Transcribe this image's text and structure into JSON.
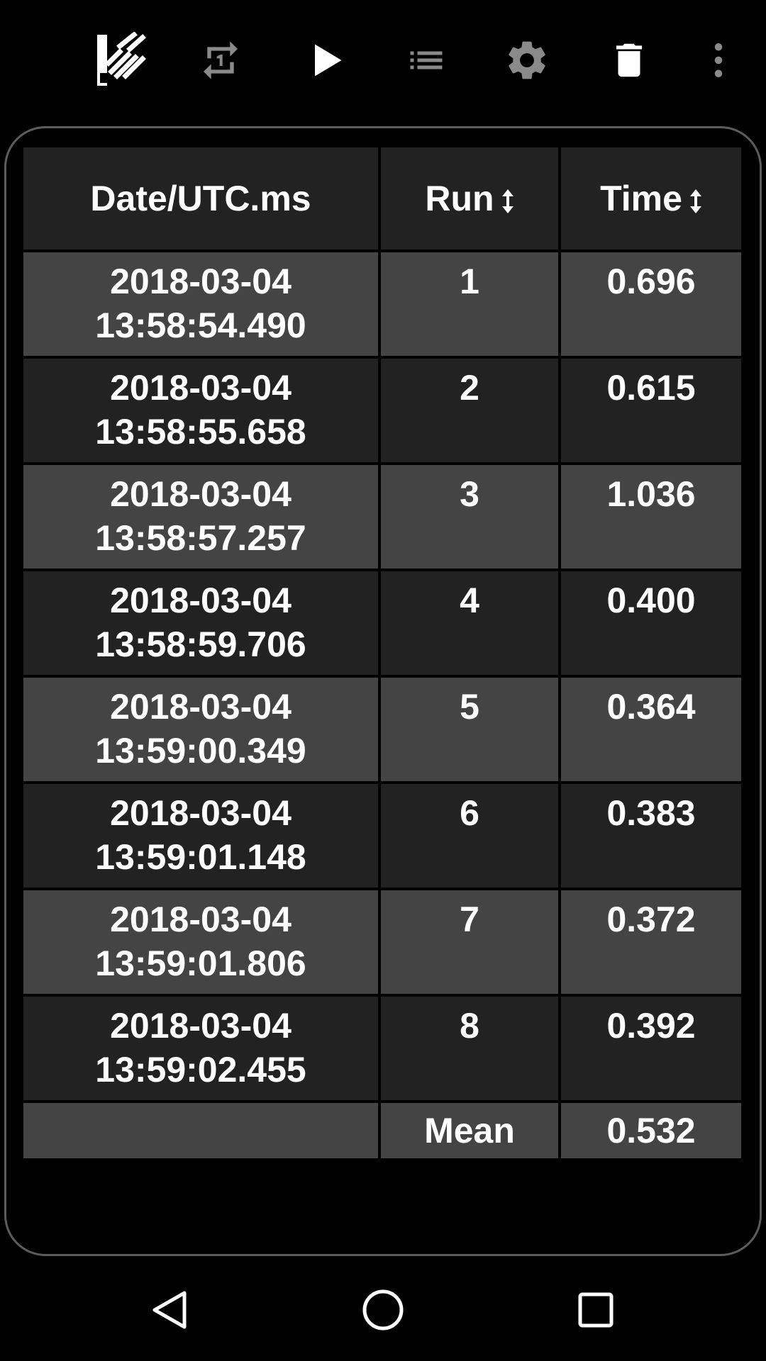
{
  "toolbar": {
    "icons": [
      "stopwatch-icon",
      "repeat-one-icon",
      "play-icon",
      "list-icon",
      "gear-icon",
      "trash-icon",
      "overflow-menu-icon"
    ]
  },
  "table": {
    "headers": {
      "date": "Date/UTC.ms",
      "run": "Run",
      "time": "Time"
    },
    "rows": [
      {
        "date": "2018-03-04",
        "clock": "13:58:54.490",
        "run": "1",
        "time": "0.696"
      },
      {
        "date": "2018-03-04",
        "clock": "13:58:55.658",
        "run": "2",
        "time": "0.615"
      },
      {
        "date": "2018-03-04",
        "clock": "13:58:57.257",
        "run": "3",
        "time": "1.036"
      },
      {
        "date": "2018-03-04",
        "clock": "13:58:59.706",
        "run": "4",
        "time": "0.400"
      },
      {
        "date": "2018-03-04",
        "clock": "13:59:00.349",
        "run": "5",
        "time": "0.364"
      },
      {
        "date": "2018-03-04",
        "clock": "13:59:01.148",
        "run": "6",
        "time": "0.383"
      },
      {
        "date": "2018-03-04",
        "clock": "13:59:01.806",
        "run": "7",
        "time": "0.372"
      },
      {
        "date": "2018-03-04",
        "clock": "13:59:02.455",
        "run": "8",
        "time": "0.392"
      }
    ],
    "footer": {
      "label": "Mean",
      "value": "0.532"
    }
  },
  "colors": {
    "background": "#000000",
    "row_light": "#444444",
    "row_dark": "#222222",
    "text": "#ffffff",
    "icon_gray": "#8a8a8a"
  },
  "navbar": {
    "icons": [
      "back-icon",
      "home-icon",
      "recents-icon"
    ]
  }
}
